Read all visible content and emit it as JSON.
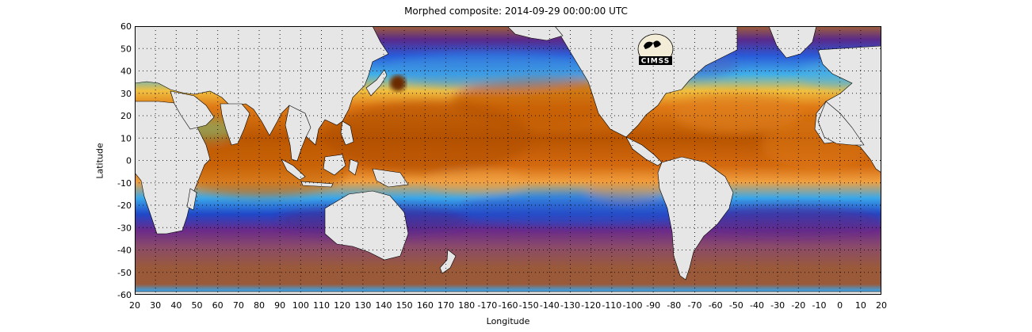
{
  "title": "Morphed composite: 2014-09-29 00:00:00 UTC",
  "axes": {
    "xlabel": "Longitude",
    "ylabel": "Latitude",
    "xticks": [
      "20",
      "30",
      "40",
      "50",
      "60",
      "70",
      "80",
      "90",
      "100",
      "110",
      "120",
      "130",
      "140",
      "150",
      "160",
      "170",
      "180",
      "-170",
      "-160",
      "-150",
      "-140",
      "-130",
      "-120",
      "-110",
      "-100",
      "-90",
      "-80",
      "-70",
      "-60",
      "-50",
      "-40",
      "-30",
      "-20",
      "-10",
      "0",
      "10",
      "20"
    ],
    "yticks": [
      "60",
      "50",
      "40",
      "30",
      "20",
      "10",
      "0",
      "-10",
      "-20",
      "-30",
      "-40",
      "-50",
      "-60"
    ],
    "lon_range": [
      20,
      380
    ],
    "lat_range": [
      -60,
      60
    ],
    "grid": "dotted"
  },
  "logo": {
    "text": "CIMSS",
    "icon": "cimss-logo-icon"
  },
  "colors": {
    "land": "#e6e6e6",
    "ocean_dry": "#9a5a3a",
    "moist_deep": "#b85a00",
    "moist_orange": "#ee8c1e",
    "moist_yellow": "#f2cc3c",
    "moist_green": "#8ee08c",
    "moist_cyan": "#38b8ec",
    "moist_blue": "#2050d0",
    "moist_purple": "#6a2a8a"
  }
}
